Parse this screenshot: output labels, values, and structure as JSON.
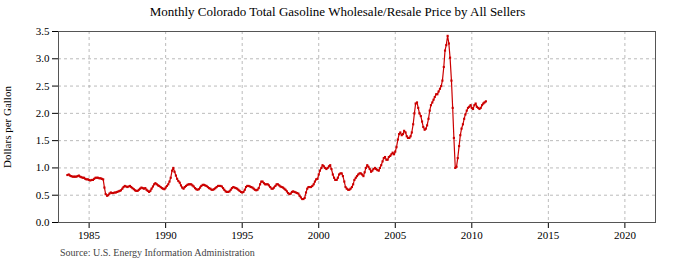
{
  "chart_data": {
    "type": "line",
    "title": "Monthly Colorado Total Gasoline Wholesale/Resale Price by All Sellers",
    "ylabel": "Dollars per Gallon",
    "annotations": [
      "Source: U.S. Energy Information Administration"
    ],
    "color": "#cc0000",
    "marker": "square",
    "grid": true,
    "xlim": [
      1983.0,
      2022.0
    ],
    "ylim": [
      0.0,
      3.5
    ],
    "xticks": [
      1985,
      1990,
      1995,
      2000,
      2005,
      2010,
      2015,
      2020
    ],
    "yticks": [
      {
        "value": 0.0,
        "label": "0.0"
      },
      0.5,
      {
        "value": 1.0,
        "label": "1.0"
      },
      1.5,
      {
        "value": 2.0,
        "label": "2.0"
      },
      2.5,
      {
        "value": 3.0,
        "label": "3.0"
      },
      3.5
    ],
    "x": [
      1983.58,
      1983.67,
      1983.75,
      1983.83,
      1983.92,
      1984.0,
      1984.08,
      1984.17,
      1984.25,
      1984.33,
      1984.42,
      1984.5,
      1984.58,
      1984.67,
      1984.75,
      1984.83,
      1984.92,
      1985.0,
      1985.08,
      1985.17,
      1985.25,
      1985.33,
      1985.42,
      1985.5,
      1985.58,
      1985.67,
      1985.75,
      1985.83,
      1985.92,
      1986.0,
      1986.08,
      1986.17,
      1986.25,
      1986.33,
      1986.42,
      1986.5,
      1986.58,
      1986.67,
      1986.75,
      1986.83,
      1986.92,
      1987.0,
      1987.08,
      1987.17,
      1987.25,
      1987.33,
      1987.42,
      1987.5,
      1987.58,
      1987.67,
      1987.75,
      1987.83,
      1987.92,
      1988.0,
      1988.08,
      1988.17,
      1988.25,
      1988.33,
      1988.42,
      1988.5,
      1988.58,
      1988.67,
      1988.75,
      1988.83,
      1988.92,
      1989.0,
      1989.08,
      1989.17,
      1989.25,
      1989.33,
      1989.42,
      1989.5,
      1989.58,
      1989.67,
      1989.75,
      1989.83,
      1989.92,
      1990.0,
      1990.08,
      1990.17,
      1990.25,
      1990.33,
      1990.42,
      1990.5,
      1990.58,
      1990.67,
      1990.75,
      1990.83,
      1990.92,
      1991.0,
      1991.08,
      1991.17,
      1991.25,
      1991.33,
      1991.42,
      1991.5,
      1991.58,
      1991.67,
      1991.75,
      1991.83,
      1991.92,
      1992.0,
      1992.08,
      1992.17,
      1992.25,
      1992.33,
      1992.42,
      1992.5,
      1992.58,
      1992.67,
      1992.75,
      1992.83,
      1992.92,
      1993.0,
      1993.08,
      1993.17,
      1993.25,
      1993.33,
      1993.42,
      1993.5,
      1993.58,
      1993.67,
      1993.75,
      1993.83,
      1993.92,
      1994.0,
      1994.08,
      1994.17,
      1994.25,
      1994.33,
      1994.42,
      1994.5,
      1994.58,
      1994.67,
      1994.75,
      1994.83,
      1994.92,
      1995.0,
      1995.08,
      1995.17,
      1995.25,
      1995.33,
      1995.42,
      1995.5,
      1995.58,
      1995.67,
      1995.75,
      1995.83,
      1995.92,
      1996.0,
      1996.08,
      1996.17,
      1996.25,
      1996.33,
      1996.42,
      1996.5,
      1996.58,
      1996.67,
      1996.75,
      1996.83,
      1996.92,
      1997.0,
      1997.08,
      1997.17,
      1997.25,
      1997.33,
      1997.42,
      1997.5,
      1997.58,
      1997.67,
      1997.75,
      1997.83,
      1997.92,
      1998.0,
      1998.08,
      1998.17,
      1998.25,
      1998.33,
      1998.42,
      1998.5,
      1998.58,
      1998.67,
      1998.75,
      1998.83,
      1998.92,
      1999.0,
      1999.08,
      1999.17,
      1999.25,
      1999.33,
      1999.42,
      1999.5,
      1999.58,
      1999.67,
      1999.75,
      1999.83,
      1999.92,
      2000.0,
      2000.08,
      2000.17,
      2000.25,
      2000.33,
      2000.42,
      2000.5,
      2000.58,
      2000.67,
      2000.75,
      2000.83,
      2000.92,
      2001.0,
      2001.08,
      2001.17,
      2001.25,
      2001.33,
      2001.42,
      2001.5,
      2001.58,
      2001.67,
      2001.75,
      2001.83,
      2001.92,
      2002.0,
      2002.08,
      2002.17,
      2002.25,
      2002.33,
      2002.42,
      2002.5,
      2002.58,
      2002.67,
      2002.75,
      2002.83,
      2002.92,
      2003.0,
      2003.08,
      2003.17,
      2003.25,
      2003.33,
      2003.42,
      2003.5,
      2003.58,
      2003.67,
      2003.75,
      2003.83,
      2003.92,
      2004.0,
      2004.08,
      2004.17,
      2004.25,
      2004.33,
      2004.42,
      2004.5,
      2004.58,
      2004.67,
      2004.75,
      2004.83,
      2004.92,
      2005.0,
      2005.08,
      2005.17,
      2005.25,
      2005.33,
      2005.42,
      2005.5,
      2005.58,
      2005.67,
      2005.75,
      2005.83,
      2005.92,
      2006.0,
      2006.08,
      2006.17,
      2006.25,
      2006.33,
      2006.42,
      2006.5,
      2006.58,
      2006.67,
      2006.75,
      2006.83,
      2006.92,
      2007.0,
      2007.08,
      2007.17,
      2007.25,
      2007.33,
      2007.42,
      2007.5,
      2007.58,
      2007.67,
      2007.75,
      2007.83,
      2007.92,
      2008.0,
      2008.08,
      2008.17,
      2008.25,
      2008.33,
      2008.42,
      2008.5,
      2008.58,
      2008.67,
      2008.75,
      2008.83,
      2008.92,
      2009.0,
      2009.08,
      2009.17,
      2009.25,
      2009.33,
      2009.42,
      2009.5,
      2009.58,
      2009.67,
      2009.75,
      2009.83,
      2009.92,
      2010.0,
      2010.08,
      2010.17,
      2010.25,
      2010.33,
      2010.42,
      2010.5,
      2010.58,
      2010.67,
      2010.75,
      2010.83,
      2010.92
    ],
    "values": [
      0.87,
      0.88,
      0.86,
      0.85,
      0.84,
      0.84,
      0.84,
      0.84,
      0.85,
      0.86,
      0.84,
      0.83,
      0.82,
      0.82,
      0.8,
      0.79,
      0.79,
      0.78,
      0.77,
      0.78,
      0.78,
      0.8,
      0.82,
      0.82,
      0.82,
      0.81,
      0.81,
      0.8,
      0.79,
      0.64,
      0.52,
      0.49,
      0.5,
      0.53,
      0.55,
      0.54,
      0.54,
      0.55,
      0.55,
      0.56,
      0.57,
      0.58,
      0.59,
      0.62,
      0.65,
      0.67,
      0.66,
      0.65,
      0.66,
      0.67,
      0.65,
      0.63,
      0.61,
      0.59,
      0.58,
      0.58,
      0.6,
      0.62,
      0.64,
      0.63,
      0.62,
      0.63,
      0.6,
      0.58,
      0.56,
      0.58,
      0.62,
      0.66,
      0.7,
      0.72,
      0.7,
      0.68,
      0.67,
      0.65,
      0.63,
      0.62,
      0.61,
      0.64,
      0.67,
      0.7,
      0.75,
      0.82,
      0.95,
      1.0,
      0.93,
      0.86,
      0.8,
      0.76,
      0.73,
      0.68,
      0.64,
      0.62,
      0.65,
      0.67,
      0.69,
      0.7,
      0.7,
      0.7,
      0.68,
      0.66,
      0.63,
      0.61,
      0.6,
      0.61,
      0.64,
      0.67,
      0.69,
      0.69,
      0.68,
      0.67,
      0.65,
      0.63,
      0.62,
      0.6,
      0.6,
      0.61,
      0.63,
      0.65,
      0.67,
      0.67,
      0.67,
      0.66,
      0.63,
      0.6,
      0.57,
      0.56,
      0.56,
      0.57,
      0.6,
      0.63,
      0.65,
      0.64,
      0.63,
      0.62,
      0.6,
      0.58,
      0.56,
      0.55,
      0.56,
      0.6,
      0.65,
      0.67,
      0.67,
      0.66,
      0.65,
      0.64,
      0.62,
      0.6,
      0.59,
      0.6,
      0.63,
      0.7,
      0.75,
      0.75,
      0.72,
      0.7,
      0.7,
      0.7,
      0.68,
      0.65,
      0.62,
      0.62,
      0.64,
      0.67,
      0.7,
      0.7,
      0.68,
      0.66,
      0.65,
      0.64,
      0.62,
      0.6,
      0.57,
      0.54,
      0.52,
      0.53,
      0.56,
      0.57,
      0.56,
      0.55,
      0.54,
      0.53,
      0.49,
      0.46,
      0.43,
      0.43,
      0.45,
      0.55,
      0.62,
      0.65,
      0.65,
      0.65,
      0.67,
      0.7,
      0.75,
      0.79,
      0.8,
      0.88,
      0.95,
      1.0,
      1.05,
      1.03,
      1.0,
      0.98,
      1.0,
      1.03,
      1.05,
      0.98,
      0.88,
      0.82,
      0.78,
      0.78,
      0.82,
      0.88,
      0.9,
      0.9,
      0.85,
      0.75,
      0.65,
      0.62,
      0.6,
      0.6,
      0.62,
      0.65,
      0.7,
      0.78,
      0.82,
      0.85,
      0.88,
      0.9,
      0.9,
      0.88,
      0.85,
      0.92,
      1.0,
      1.05,
      1.02,
      0.98,
      0.93,
      0.95,
      0.98,
      1.0,
      0.98,
      0.96,
      0.95,
      1.0,
      1.05,
      1.12,
      1.18,
      1.2,
      1.15,
      1.15,
      1.2,
      1.22,
      1.25,
      1.28,
      1.25,
      1.3,
      1.38,
      1.52,
      1.62,
      1.65,
      1.6,
      1.62,
      1.68,
      1.65,
      1.58,
      1.55,
      1.55,
      1.58,
      1.65,
      1.8,
      2.0,
      2.18,
      2.2,
      2.1,
      2.0,
      1.95,
      1.85,
      1.75,
      1.7,
      1.72,
      1.78,
      1.9,
      2.05,
      2.15,
      2.2,
      2.25,
      2.3,
      2.35,
      2.35,
      2.4,
      2.45,
      2.5,
      2.6,
      2.85,
      3.15,
      3.25,
      3.42,
      3.28,
      3.02,
      2.6,
      2.1,
      1.55,
      1.0,
      1.02,
      1.18,
      1.4,
      1.6,
      1.72,
      1.8,
      1.9,
      1.98,
      2.05,
      2.1,
      2.12,
      2.15,
      2.1,
      2.08,
      2.15,
      2.18,
      2.12,
      2.1,
      2.08,
      2.1,
      2.15,
      2.18,
      2.2,
      2.22
    ]
  }
}
